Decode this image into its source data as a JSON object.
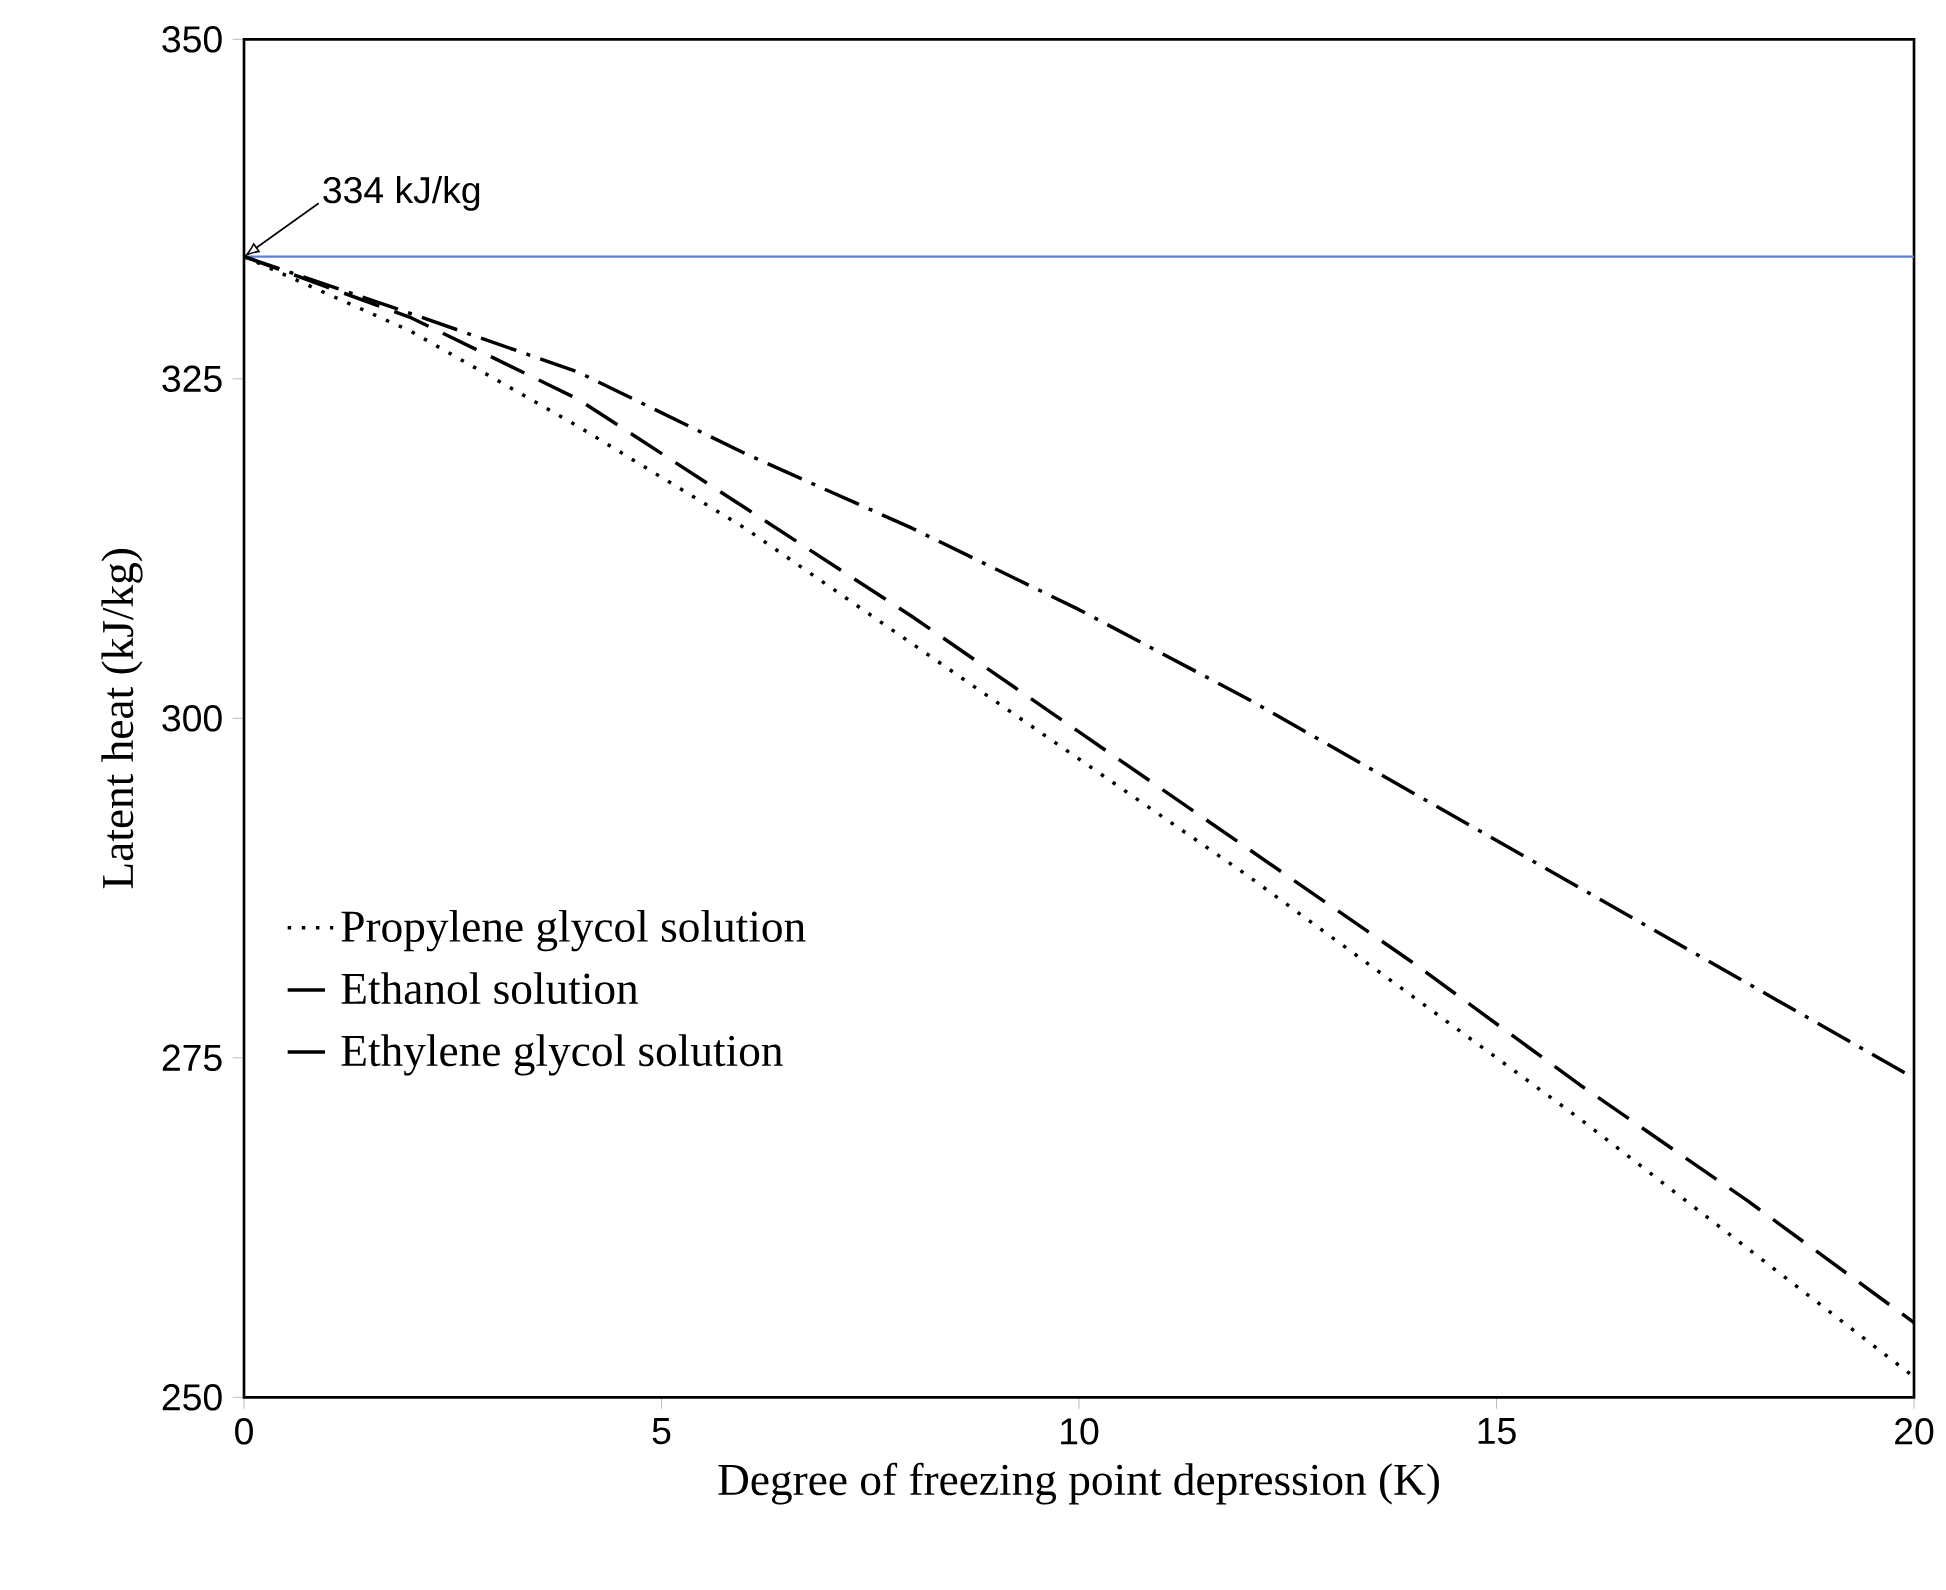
{
  "chart_data": {
    "type": "line",
    "xlabel": "Degree of freezing point depression (K)",
    "ylabel": "Latent heat (kJ/kg)",
    "xlim": [
      0,
      20
    ],
    "ylim": [
      250,
      350
    ],
    "xticks": [
      0,
      5,
      10,
      15,
      20
    ],
    "yticks": [
      250,
      275,
      300,
      325,
      350
    ],
    "grid": false,
    "legend": "left",
    "marker": "none",
    "series": [
      {
        "name": "Propylene glycol solution",
        "color": "#000000",
        "line_style": "dotted",
        "x": [
          0,
          2,
          4,
          6,
          8,
          10,
          12,
          14,
          16,
          18,
          20
        ],
        "values": [
          334,
          328.5,
          321.5,
          314,
          305.5,
          297,
          288.5,
          279.5,
          270.5,
          261,
          251.5
        ]
      },
      {
        "name": "Ethanol solution",
        "color": "#000000",
        "line_style": "dashed",
        "x": [
          0,
          2,
          4,
          6,
          8,
          10,
          12,
          14,
          16,
          18,
          20
        ],
        "values": [
          334,
          329.5,
          323.5,
          315.5,
          307.5,
          299,
          290.5,
          282,
          273,
          264.5,
          255.5
        ]
      },
      {
        "name": "Ethylene glycol solution",
        "color": "#000000",
        "line_style": "dashdot",
        "x": [
          0,
          2,
          4,
          6,
          8,
          10,
          12,
          14,
          16,
          18,
          20
        ],
        "values": [
          334,
          329.8,
          325.5,
          319.5,
          314,
          308,
          301.5,
          294.5,
          287.5,
          280.5,
          273.5
        ]
      }
    ],
    "ref_lines": [
      {
        "axis": "y",
        "value": 334,
        "color": "#5b80d8"
      }
    ],
    "annotations": [
      {
        "text": "334 kJ/kg",
        "x": 0,
        "y": 334
      }
    ]
  }
}
